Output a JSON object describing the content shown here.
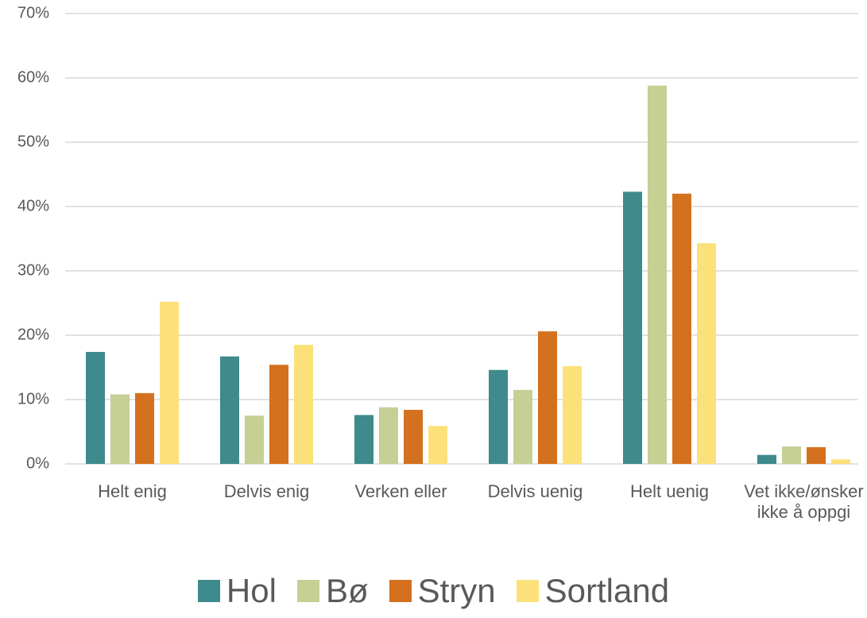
{
  "chart_data": {
    "type": "bar",
    "categories": [
      "Helt enig",
      "Delvis enig",
      "Verken eller",
      "Delvis uenig",
      "Helt uenig",
      "Vet ikke/ønsker ikke å oppgi"
    ],
    "series": [
      {
        "name": "Hol",
        "color": "#3e8a8c",
        "values": [
          17.4,
          16.7,
          7.6,
          14.6,
          42.3,
          1.4
        ]
      },
      {
        "name": "Bø",
        "color": "#c6cf94",
        "values": [
          10.8,
          7.5,
          8.8,
          11.5,
          58.8,
          2.7
        ]
      },
      {
        "name": "Stryn",
        "color": "#d4711e",
        "values": [
          11,
          15.4,
          8.4,
          20.6,
          42,
          2.6
        ]
      },
      {
        "name": "Sortland",
        "color": "#fce17a",
        "values": [
          25.2,
          18.5,
          5.9,
          15.2,
          34.3,
          0.7
        ]
      }
    ],
    "ylim": [
      0,
      70
    ],
    "yticks": [
      {
        "value": 0,
        "label": "0%"
      },
      {
        "value": 10,
        "label": "10%"
      },
      {
        "value": 20,
        "label": "20%"
      },
      {
        "value": 30,
        "label": "30%"
      },
      {
        "value": 40,
        "label": "40%"
      },
      {
        "value": 50,
        "label": "50%"
      },
      {
        "value": 60,
        "label": "60%"
      },
      {
        "value": 70,
        "label": "70%"
      }
    ],
    "grid": true,
    "legend": "bottom"
  }
}
